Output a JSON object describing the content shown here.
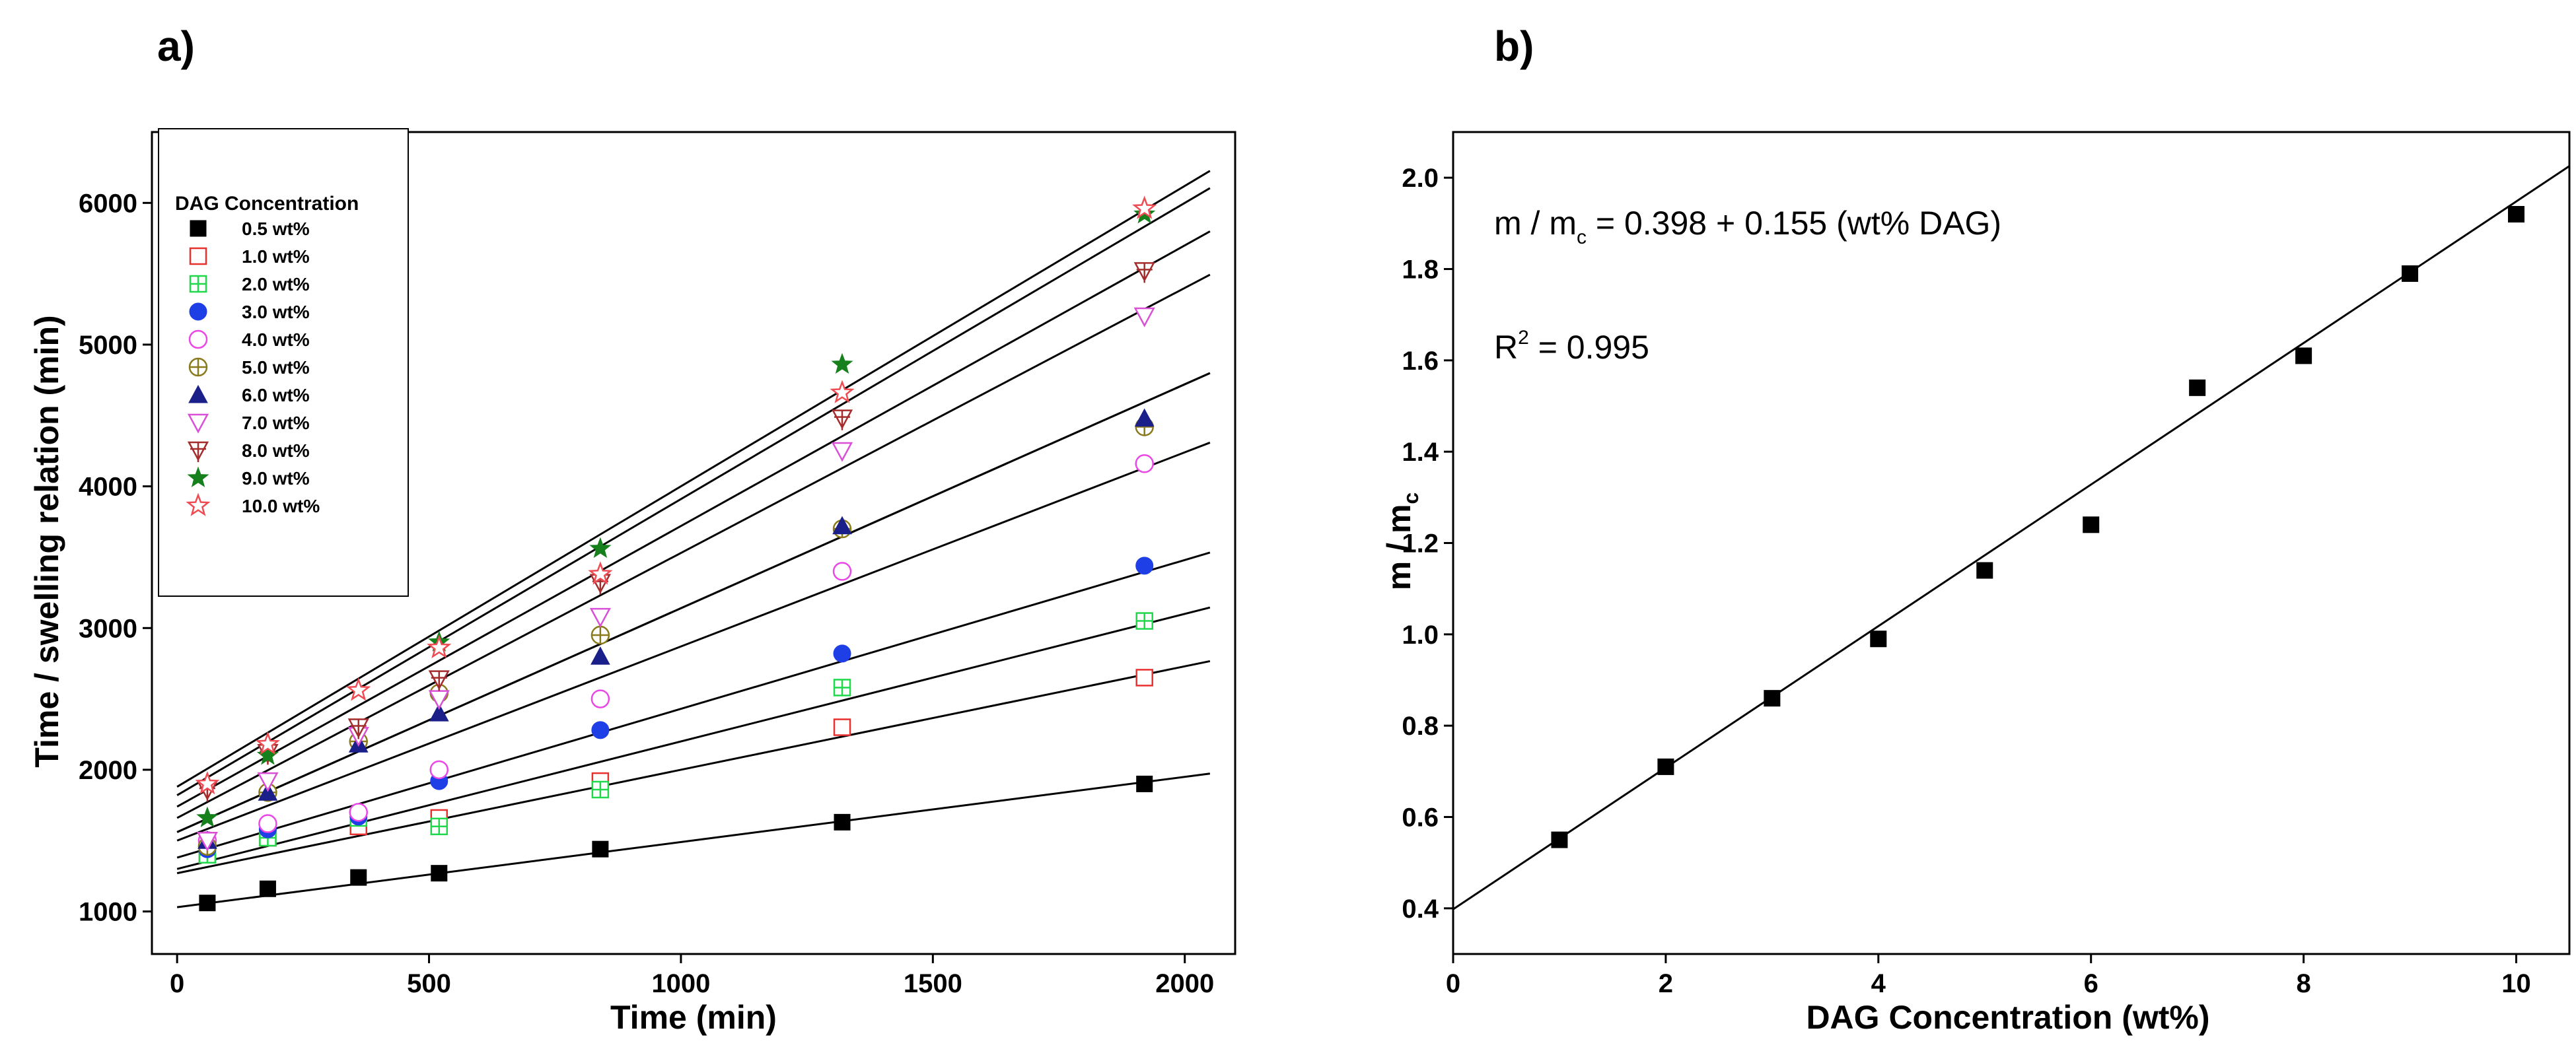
{
  "chart_data": [
    {
      "type": "scatter",
      "panel_label": "a)",
      "xlabel": "Time (min)",
      "ylabel": "Time / swelling relation (min)",
      "xlim": [
        -50,
        2100
      ],
      "ylim": [
        700,
        6500
      ],
      "xticks": [
        0,
        500,
        1000,
        1500,
        2000
      ],
      "yticks": [
        1000,
        2000,
        3000,
        4000,
        5000,
        6000
      ],
      "grid": false,
      "legend_title": "DAG Concentration",
      "legend_position": "top-left",
      "x": [
        60,
        180,
        360,
        520,
        840,
        1320,
        1920
      ],
      "series": [
        {
          "name": "0.5 wt%",
          "marker": "square-filled",
          "color": "#000000",
          "values": [
            1060,
            1160,
            1240,
            1270,
            1440,
            1630,
            1900
          ],
          "fit": [
            1030,
            0.46
          ]
        },
        {
          "name": "1.0 wt%",
          "marker": "square-open",
          "color": "#e8312f",
          "values": [
            1400,
            1520,
            1600,
            1660,
            1920,
            2300,
            2650
          ],
          "fit": [
            1270,
            0.73
          ]
        },
        {
          "name": "2.0 wt%",
          "marker": "square-plus",
          "color": "#1fd94b",
          "values": [
            1400,
            1520,
            1660,
            1600,
            1860,
            2580,
            3050
          ],
          "fit": [
            1300,
            0.9
          ]
        },
        {
          "name": "3.0 wt%",
          "marker": "circle-filled",
          "color": "#1f3fe6",
          "values": [
            1440,
            1580,
            1670,
            1920,
            2280,
            2820,
            3440
          ],
          "fit": [
            1380,
            1.05
          ]
        },
        {
          "name": "4.0 wt%",
          "marker": "circle-open",
          "color": "#ea48e6",
          "values": [
            1500,
            1620,
            1700,
            2000,
            2500,
            3400,
            4160
          ],
          "fit": [
            1500,
            1.37
          ]
        },
        {
          "name": "5.0 wt%",
          "marker": "circle-plus",
          "color": "#8a7a1c",
          "values": [
            1460,
            1840,
            2200,
            2540,
            2950,
            3700,
            4420
          ],
          "fit": [
            1560,
            1.58
          ]
        },
        {
          "name": "6.0 wt%",
          "marker": "triangle-up-filled",
          "color": "#1a1f8a",
          "values": [
            1500,
            1840,
            2180,
            2400,
            2800,
            3720,
            4480
          ],
          "fit": [
            1560,
            1.58
          ]
        },
        {
          "name": "7.0 wt%",
          "marker": "triangle-down-open",
          "color": "#d94fd6",
          "values": [
            1500,
            1920,
            2240,
            2500,
            3080,
            4250,
            5200
          ],
          "fit": [
            1660,
            1.87
          ]
        },
        {
          "name": "8.0 wt%",
          "marker": "triangle-down-plus",
          "color": "#a52c2c",
          "values": [
            1860,
            2120,
            2300,
            2640,
            3320,
            4480,
            5520
          ],
          "fit": [
            1740,
            1.98
          ]
        },
        {
          "name": "9.0 wt%",
          "marker": "star-filled",
          "color": "#16801c",
          "values": [
            1660,
            2100,
            2560,
            2900,
            3560,
            4860,
            5920
          ],
          "fit": [
            1820,
            2.09
          ]
        },
        {
          "name": "10.0 wt%",
          "marker": "star-open",
          "color": "#ee4b52",
          "values": [
            1900,
            2180,
            2560,
            2860,
            3380,
            4660,
            5960
          ],
          "fit": [
            1880,
            2.12
          ]
        }
      ]
    },
    {
      "type": "scatter",
      "panel_label": "b)",
      "xlabel": "DAG Concentration (wt%)",
      "ylabel": "m / m",
      "ylabel_sub": "c",
      "xlim": [
        0,
        10.5
      ],
      "ylim": [
        0.3,
        2.1
      ],
      "xticks": [
        0,
        2,
        4,
        6,
        8,
        10
      ],
      "yticks": [
        "0.4",
        "0.6",
        "0.8",
        "1.0",
        "1.2",
        "1.4",
        "1.6",
        "1.8",
        "2.0"
      ],
      "grid": false,
      "x": [
        1,
        2,
        3,
        4,
        5,
        6,
        7,
        8,
        9,
        10
      ],
      "y": [
        0.55,
        0.71,
        0.86,
        0.99,
        1.14,
        1.24,
        1.54,
        1.61,
        1.79,
        1.92
      ],
      "marker": "square-filled",
      "color": "#000000",
      "fit": {
        "intercept": 0.398,
        "slope": 0.155
      },
      "annotation": {
        "eq_pre": "m / m",
        "eq_sub": "c",
        "eq_post": " = 0.398 + 0.155 (wt% DAG)",
        "r2_pre": "R",
        "r2_sup": "2",
        "r2_post": " = 0.995"
      }
    }
  ]
}
